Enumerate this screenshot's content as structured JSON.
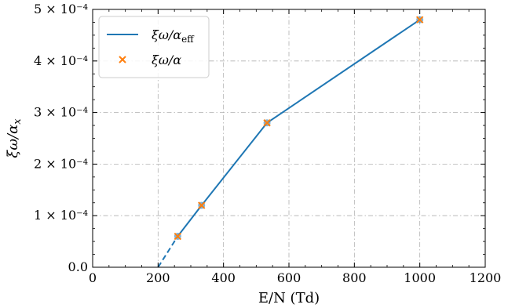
{
  "chart_data": {
    "type": "line",
    "xlabel": "E/N (Td)",
    "ylabel": "ξω/α_x",
    "xlim": [
      0,
      1200
    ],
    "ylim": [
      0,
      0.0005
    ],
    "x_ticks": [
      0,
      200,
      400,
      600,
      800,
      1000,
      1200
    ],
    "x_tick_labels": [
      "0",
      "200",
      "400",
      "600",
      "800",
      "1000",
      "1200"
    ],
    "y_ticks": [
      0,
      0.0001,
      0.0002,
      0.0003,
      0.0004,
      0.0005
    ],
    "y_tick_labels": [
      "0.0",
      "1 × 10⁻⁴",
      "2 × 10⁻⁴",
      "3 × 10⁻⁴",
      "4 × 10⁻⁴",
      "5 × 10⁻⁴"
    ],
    "grid": true,
    "legend_position": "top-left",
    "series": [
      {
        "name": "ξω/α_eff",
        "style": "solid line",
        "color": "#1f77b4",
        "x": [
          260,
          333,
          533,
          1000
        ],
        "y": [
          6e-05,
          0.00012,
          0.00028,
          0.00048
        ]
      },
      {
        "name": "ξω/α",
        "style": "x markers",
        "color": "#ff7f0e",
        "x": [
          260,
          333,
          533,
          1000
        ],
        "y": [
          6e-05,
          0.00012,
          0.00028,
          0.00048
        ]
      }
    ],
    "extrapolation": {
      "style": "dashed line",
      "color": "#1f77b4",
      "x": [
        200,
        260
      ],
      "y": [
        0,
        6e-05
      ]
    }
  }
}
